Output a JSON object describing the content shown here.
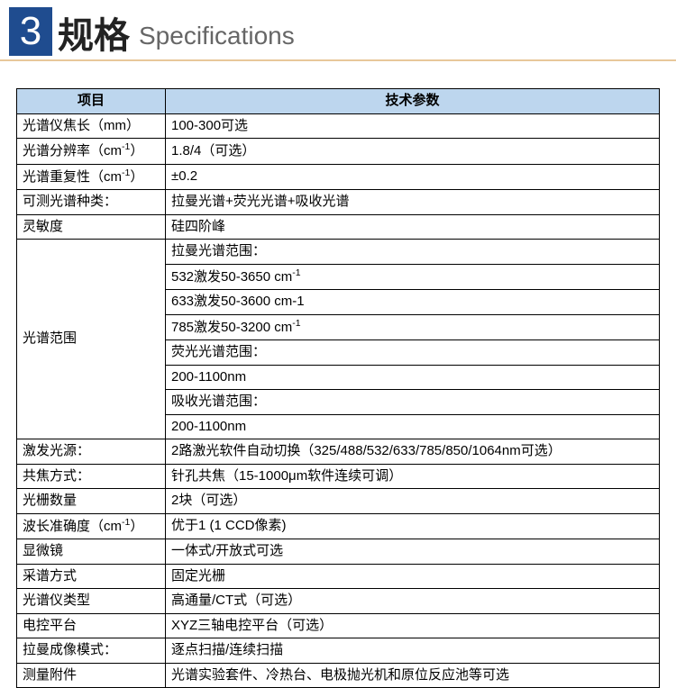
{
  "header": {
    "number": "3",
    "title_zh": "规格",
    "title_en": "Specifications",
    "number_bg": "#1f4c8f",
    "number_color": "#ffffff",
    "underline_color": "#e8c79a"
  },
  "table": {
    "header_bg": "#bdd6ee",
    "border_color": "#000000",
    "col_item_header": "项目",
    "col_value_header": "技术参数",
    "rows": [
      {
        "item_html": "光谱仪焦长（mm）",
        "values": [
          "100-300可选"
        ]
      },
      {
        "item_html": "光谱分辨率（cm<sup>-1</sup>）",
        "values": [
          "1.8/4（可选）"
        ]
      },
      {
        "item_html": "光谱重复性（cm<sup>-1</sup>）",
        "values": [
          "±0.2"
        ]
      },
      {
        "item_html": "可测光谱种类：",
        "values": [
          "拉曼光谱+荧光光谱+吸收光谱"
        ]
      },
      {
        "item_html": "灵敏度",
        "values": [
          "硅四阶峰"
        ]
      },
      {
        "item_html": "光谱范围",
        "values": [
          "拉曼光谱范围：",
          "532激发50-3650 cm<sup>-1</sup>",
          "633激发50-3600 cm-1",
          "785激发50-3200 cm<sup>-1</sup>",
          "荧光光谱范围：",
          "200-1100nm",
          "吸收光谱范围：",
          "200-1100nm"
        ]
      },
      {
        "item_html": "激发光源：",
        "values": [
          "2路激光软件自动切换（325/488/532/633/785/850/1064nm可选）"
        ]
      },
      {
        "item_html": "共焦方式：",
        "values": [
          "针孔共焦（15-1000μm软件连续可调）"
        ]
      },
      {
        "item_html": "光栅数量",
        "values": [
          "2块（可选）"
        ]
      },
      {
        "item_html": "波长准确度（cm<sup>-1</sup>）",
        "values": [
          "优于1 (1 CCD像素)"
        ]
      },
      {
        "item_html": "显微镜",
        "values": [
          "一体式/开放式可选"
        ]
      },
      {
        "item_html": "采谱方式",
        "values": [
          "固定光栅"
        ]
      },
      {
        "item_html": "光谱仪类型",
        "values": [
          "高通量/CT式（可选）"
        ]
      },
      {
        "item_html": "电控平台",
        "values": [
          "XYZ三轴电控平台（可选）"
        ]
      },
      {
        "item_html": "拉曼成像模式：",
        "values": [
          "逐点扫描/连续扫描"
        ]
      },
      {
        "item_html": "测量附件",
        "values": [
          "光谱实验套件、冷热台、电极抛光机和原位反应池等可选"
        ]
      }
    ]
  }
}
